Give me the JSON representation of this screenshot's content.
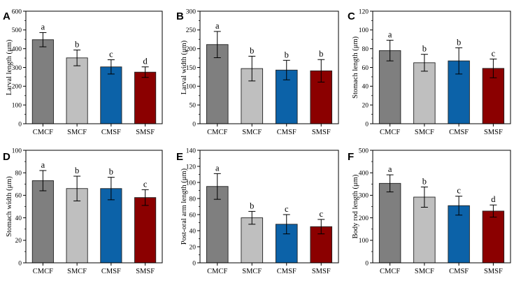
{
  "chart_data": [
    {
      "type": "bar",
      "panel": "A",
      "categories": [
        "CMCF",
        "SMCF",
        "CMSF",
        "SMSF"
      ],
      "values": [
        448,
        351,
        303,
        275
      ],
      "errors": [
        38,
        42,
        38,
        28
      ],
      "significance": [
        "a",
        "b",
        "c",
        "d"
      ],
      "ylabel": "Larval length (μm)",
      "ylim": [
        0,
        600
      ],
      "yticks": [
        "0",
        "100",
        "200",
        "300",
        "400",
        "500",
        "600"
      ]
    },
    {
      "type": "bar",
      "panel": "B",
      "categories": [
        "CMCF",
        "SMCF",
        "CMSF",
        "SMSF"
      ],
      "values": [
        211,
        147,
        143,
        141
      ],
      "errors": [
        35,
        33,
        26,
        30
      ],
      "significance": [
        "a",
        "b",
        "b",
        "b"
      ],
      "ylabel": "Larval width (μm)",
      "ylim": [
        0,
        300
      ],
      "yticks": [
        "0",
        "50",
        "100",
        "150",
        "200",
        "250",
        "300"
      ]
    },
    {
      "type": "bar",
      "panel": "C",
      "categories": [
        "CMCF",
        "SMCF",
        "CMSF",
        "SMSF"
      ],
      "values": [
        78,
        65,
        67,
        59
      ],
      "errors": [
        11,
        9,
        14,
        10
      ],
      "significance": [
        "a",
        "b",
        "b",
        "c"
      ],
      "ylabel": "Stomach length (μm)",
      "ylim": [
        0,
        120
      ],
      "yticks": [
        "0",
        "20",
        "40",
        "60",
        "80",
        "100",
        "120"
      ]
    },
    {
      "type": "bar",
      "panel": "D",
      "categories": [
        "CMCF",
        "SMCF",
        "CMSF",
        "SMSF"
      ],
      "values": [
        73,
        66,
        66,
        58
      ],
      "errors": [
        9,
        11,
        10,
        7
      ],
      "significance": [
        "a",
        "b",
        "b",
        "c"
      ],
      "ylabel": "Stomach width (μm)",
      "ylim": [
        0,
        100
      ],
      "yticks": [
        "0",
        "20",
        "40",
        "60",
        "80",
        "100"
      ]
    },
    {
      "type": "bar",
      "panel": "E",
      "categories": [
        "CMCF",
        "SMCF",
        "CMSF",
        "SMSF"
      ],
      "values": [
        95,
        56,
        48,
        45
      ],
      "errors": [
        16,
        8,
        12,
        9
      ],
      "significance": [
        "a",
        "b",
        "c",
        "c"
      ],
      "ylabel": "Post-oral arm length (μm)",
      "ylim": [
        0,
        140
      ],
      "yticks": [
        "0",
        "20",
        "40",
        "60",
        "80",
        "100",
        "120",
        "140"
      ]
    },
    {
      "type": "bar",
      "panel": "F",
      "categories": [
        "CMCF",
        "SMCF",
        "CMSF",
        "SMSF"
      ],
      "values": [
        353,
        292,
        254,
        230
      ],
      "errors": [
        38,
        45,
        42,
        27
      ],
      "significance": [
        "a",
        "b",
        "c",
        "d"
      ],
      "ylabel": "Body rod length (μm)",
      "ylim": [
        0,
        500
      ],
      "yticks": [
        "0",
        "100",
        "200",
        "300",
        "400",
        "500"
      ]
    }
  ],
  "colors": {
    "CMCF": "#7f7f7f",
    "SMCF": "#bfbfbf",
    "CMSF": "#0c62a8",
    "SMSF": "#8b0000"
  }
}
